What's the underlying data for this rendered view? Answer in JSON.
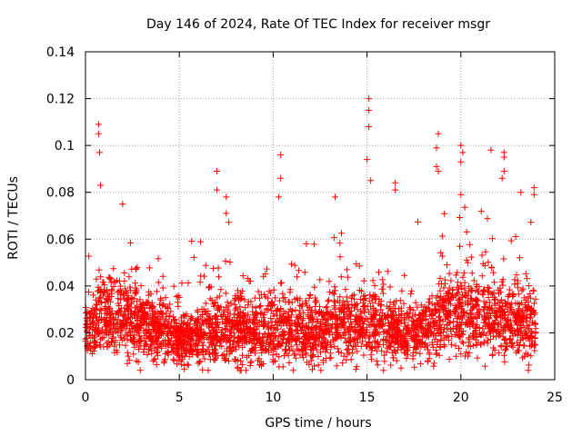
{
  "chart_data": {
    "type": "scatter",
    "title": "Day 146 of 2024, Rate Of TEC Index for receiver msgr",
    "xlabel": "GPS time / hours",
    "ylabel": "ROTI / TECUs",
    "xlim": [
      0,
      25
    ],
    "ylim": [
      0,
      0.14
    ],
    "xticks": [
      0,
      5,
      10,
      15,
      20,
      25
    ],
    "xtick_labels": [
      "0",
      "5",
      "10",
      "15",
      "20",
      "25"
    ],
    "yticks": [
      0,
      0.02,
      0.04,
      0.06,
      0.08,
      0.1,
      0.12,
      0.14
    ],
    "ytick_labels": [
      "0",
      "0.02",
      "0.04",
      "0.06",
      "0.08",
      "0.1",
      "0.12",
      "0.14"
    ],
    "grid": true,
    "marker": "+",
    "color": "#ff0000",
    "time_range_hours": [
      0,
      24
    ],
    "baseline_profile": [
      [
        0,
        0.022
      ],
      [
        1,
        0.026
      ],
      [
        2,
        0.026
      ],
      [
        3,
        0.024
      ],
      [
        4,
        0.022
      ],
      [
        5,
        0.018
      ],
      [
        6,
        0.018
      ],
      [
        7,
        0.022
      ],
      [
        8,
        0.022
      ],
      [
        9,
        0.02
      ],
      [
        10,
        0.022
      ],
      [
        11,
        0.022
      ],
      [
        12,
        0.02
      ],
      [
        13,
        0.022
      ],
      [
        14,
        0.024
      ],
      [
        15,
        0.024
      ],
      [
        16,
        0.022
      ],
      [
        17,
        0.02
      ],
      [
        18,
        0.02
      ],
      [
        19,
        0.026
      ],
      [
        20,
        0.028
      ],
      [
        21,
        0.028
      ],
      [
        22,
        0.026
      ],
      [
        23,
        0.024
      ],
      [
        24,
        0.022
      ]
    ],
    "notable_points": [
      {
        "x": 0.7,
        "y": 0.109
      },
      {
        "x": 0.7,
        "y": 0.105
      },
      {
        "x": 0.75,
        "y": 0.097
      },
      {
        "x": 0.8,
        "y": 0.083
      },
      {
        "x": 7.0,
        "y": 0.089
      },
      {
        "x": 7.0,
        "y": 0.081
      },
      {
        "x": 7.5,
        "y": 0.078
      },
      {
        "x": 7.5,
        "y": 0.071
      },
      {
        "x": 10.4,
        "y": 0.096
      },
      {
        "x": 10.4,
        "y": 0.086
      },
      {
        "x": 10.3,
        "y": 0.078
      },
      {
        "x": 13.3,
        "y": 0.078
      },
      {
        "x": 15.1,
        "y": 0.12
      },
      {
        "x": 15.1,
        "y": 0.115
      },
      {
        "x": 15.1,
        "y": 0.108
      },
      {
        "x": 15.0,
        "y": 0.094
      },
      {
        "x": 15.2,
        "y": 0.085
      },
      {
        "x": 16.5,
        "y": 0.084
      },
      {
        "x": 16.5,
        "y": 0.081
      },
      {
        "x": 18.8,
        "y": 0.105
      },
      {
        "x": 18.7,
        "y": 0.099
      },
      {
        "x": 18.7,
        "y": 0.091
      },
      {
        "x": 18.8,
        "y": 0.089
      },
      {
        "x": 20.0,
        "y": 0.1
      },
      {
        "x": 20.1,
        "y": 0.097
      },
      {
        "x": 20.0,
        "y": 0.093
      },
      {
        "x": 21.6,
        "y": 0.098
      },
      {
        "x": 22.3,
        "y": 0.097
      },
      {
        "x": 22.3,
        "y": 0.095
      },
      {
        "x": 22.3,
        "y": 0.089
      },
      {
        "x": 22.2,
        "y": 0.086
      },
      {
        "x": 20.0,
        "y": 0.079
      },
      {
        "x": 23.9,
        "y": 0.082
      },
      {
        "x": 23.9,
        "y": 0.079
      },
      {
        "x": 23.2,
        "y": 0.08
      }
    ]
  }
}
